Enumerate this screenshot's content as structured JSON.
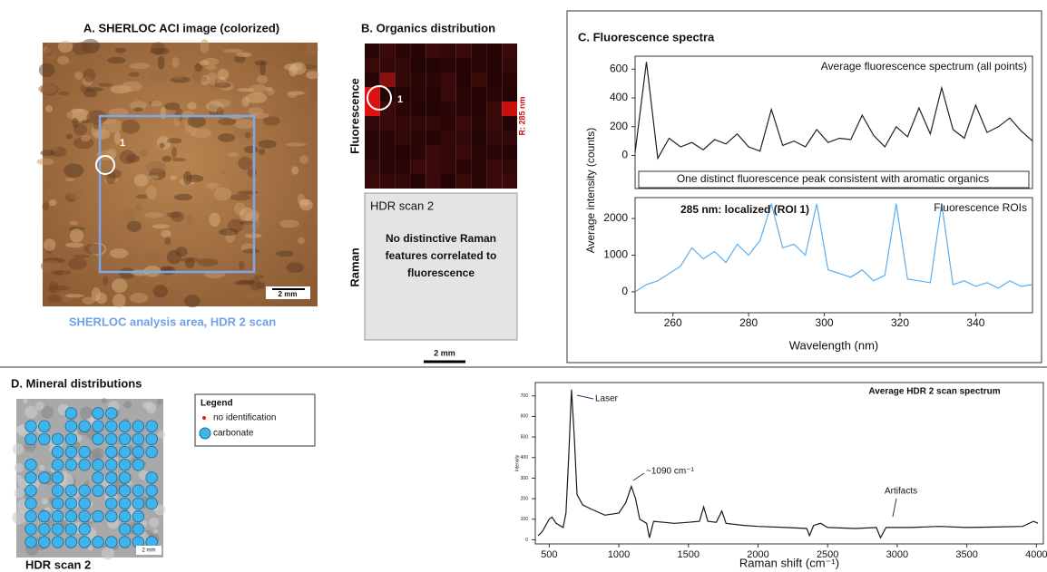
{
  "panels": {
    "panel_a": {
      "title": "A. SHERLOC ACI image (colorized)",
      "roi_label": "1",
      "scale_bar": "2 mm",
      "caption": "SHERLOC analysis area, HDR 2 scan"
    },
    "panel_b": {
      "title": "B. Organics distribution",
      "row_labels": [
        "Fluorescence",
        "Raman"
      ],
      "channel": "R: 285 nm",
      "roi_label": "1",
      "raman_box_title": "HDR scan 2",
      "raman_box_text": [
        "No distinctive Raman",
        "features correlated to",
        "fluorescence"
      ],
      "scale_bar": "2 mm"
    },
    "panel_c": {
      "title": "C. Fluorescence spectra",
      "ylabel": "Average intensity (counts)"
    },
    "panel_d": {
      "title": "D. Mineral distributions",
      "legend_title": "Legend",
      "legend_items": [
        "no identification",
        "carbonate"
      ],
      "image_label": "HDR scan 2",
      "scale_bar": "2 mm"
    }
  },
  "chart_data": [
    {
      "type": "line",
      "x": [
        250,
        253,
        256,
        259,
        262,
        265,
        268,
        271,
        274,
        277,
        280,
        283,
        286,
        289,
        292,
        295,
        298,
        301,
        304,
        307,
        310,
        313,
        316,
        319,
        322,
        325,
        328,
        331,
        334,
        337,
        340,
        343,
        346,
        349,
        352,
        355
      ],
      "series": [
        {
          "name": "Average fluorescence spectrum (all points)",
          "color": "#2b1d1d",
          "values": [
            20,
            650,
            -20,
            120,
            60,
            90,
            40,
            110,
            80,
            150,
            60,
            30,
            320,
            70,
            100,
            60,
            180,
            90,
            120,
            110,
            280,
            140,
            60,
            200,
            130,
            330,
            150,
            470,
            180,
            120,
            350,
            160,
            200,
            260,
            170,
            100
          ]
        }
      ],
      "xlim": [
        250,
        355
      ],
      "ylim": [
        -230,
        690
      ],
      "yticks": [
        0,
        200,
        400,
        600
      ],
      "annotations": [
        "One distinct fluorescence peak consistent with aromatic organics"
      ]
    },
    {
      "type": "line",
      "x": [
        250,
        253,
        256,
        259,
        262,
        265,
        268,
        271,
        274,
        277,
        280,
        283,
        286,
        289,
        292,
        295,
        298,
        301,
        304,
        307,
        310,
        313,
        316,
        319,
        322,
        325,
        328,
        331,
        334,
        337,
        340,
        343,
        346,
        349,
        352,
        355
      ],
      "series": [
        {
          "name": "Fluorescence ROIs",
          "color": "#5aaef0",
          "values": [
            0,
            200,
            300,
            500,
            700,
            1200,
            900,
            1100,
            800,
            1300,
            1000,
            1400,
            2400,
            1200,
            1300,
            1000,
            2400,
            600,
            500,
            400,
            600,
            300,
            450,
            2400,
            350,
            300,
            250,
            2400,
            200,
            300,
            150,
            250,
            100,
            300,
            150,
            200
          ]
        }
      ],
      "xlim": [
        250,
        355
      ],
      "ylim": [
        -570,
        2570
      ],
      "xticks": [
        260,
        280,
        300,
        320,
        340
      ],
      "yticks": [
        0,
        1000,
        2000
      ],
      "xlabel": "Wavelength (nm)",
      "annotations": [
        "285 nm: localized (ROI 1)"
      ]
    },
    {
      "type": "line",
      "title": "Average HDR 2 scan spectrum",
      "x": [
        420,
        450,
        500,
        520,
        550,
        600,
        620,
        640,
        660,
        680,
        700,
        740,
        800,
        900,
        1000,
        1050,
        1090,
        1120,
        1150,
        1200,
        1220,
        1250,
        1400,
        1500,
        1580,
        1610,
        1640,
        1700,
        1740,
        1770,
        1900,
        2000,
        2200,
        2350,
        2370,
        2400,
        2450,
        2500,
        2700,
        2850,
        2880,
        2920,
        3100,
        3300,
        3500,
        3700,
        3900,
        3980,
        4010
      ],
      "values": [
        20,
        40,
        100,
        110,
        80,
        60,
        130,
        400,
        730,
        500,
        220,
        170,
        150,
        120,
        130,
        180,
        260,
        200,
        100,
        80,
        10,
        90,
        80,
        85,
        90,
        160,
        90,
        85,
        140,
        80,
        70,
        65,
        60,
        55,
        20,
        70,
        80,
        60,
        55,
        60,
        10,
        60,
        60,
        65,
        60,
        62,
        65,
        90,
        80
      ],
      "color": "#1a1a1a",
      "xlim": [
        400,
        4050
      ],
      "ylim": [
        -20,
        765
      ],
      "xticks": [
        500,
        1000,
        1500,
        2000,
        2500,
        3000,
        3500,
        4000
      ],
      "yticks": [
        0,
        100,
        200,
        300,
        400,
        500,
        600,
        700
      ],
      "xlabel": "Raman shift (cm⁻¹)",
      "ylabel": "Intensity",
      "annotations": [
        "Laser",
        "~1090 cm⁻¹",
        "Artifacts"
      ]
    }
  ]
}
